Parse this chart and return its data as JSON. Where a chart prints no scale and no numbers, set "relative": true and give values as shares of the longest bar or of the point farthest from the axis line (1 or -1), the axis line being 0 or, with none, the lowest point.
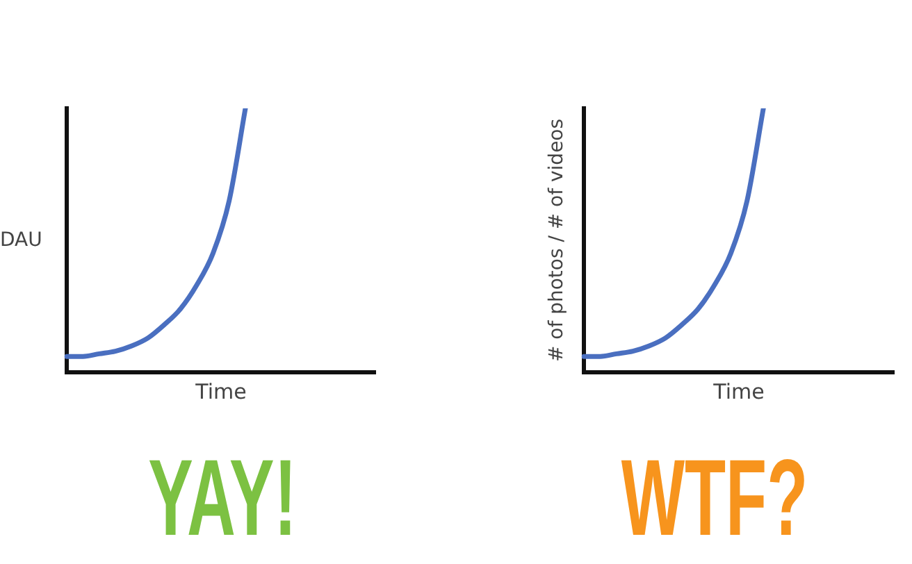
{
  "chart_data": [
    {
      "type": "line",
      "ylabel": "DAU",
      "xlabel": "Time",
      "relative": true,
      "grid": false,
      "legend": false,
      "marker": "none",
      "categories": [
        null,
        null,
        null,
        null,
        null,
        null,
        null,
        null,
        null,
        null,
        null,
        null,
        null,
        null,
        null,
        null,
        null,
        null,
        null,
        null
      ],
      "series": [
        {
          "color": "#4a6fc0",
          "values": [
            0.06,
            0.06,
            0.07,
            0.08,
            0.1,
            0.13,
            0.18,
            0.24,
            0.33,
            0.45,
            0.65,
            1,
            null,
            null,
            null,
            null,
            null,
            null,
            null,
            null
          ]
        }
      ],
      "annotations": [
        "YAY!"
      ]
    },
    {
      "type": "line",
      "ylabel": "# of photos / # of videos",
      "xlabel": "Time",
      "relative": true,
      "grid": false,
      "legend": false,
      "marker": "none",
      "categories": [
        null,
        null,
        null,
        null,
        null,
        null,
        null,
        null,
        null,
        null,
        null,
        null,
        null,
        null,
        null,
        null,
        null,
        null,
        null,
        null
      ],
      "series": [
        {
          "color": "#4a6fc0",
          "values": [
            0.06,
            0.06,
            0.07,
            0.08,
            0.1,
            0.13,
            0.18,
            0.24,
            0.33,
            0.45,
            0.65,
            1,
            null,
            null,
            null,
            null,
            null,
            null,
            null,
            null
          ]
        }
      ],
      "annotations": [
        "WTF?"
      ]
    }
  ]
}
